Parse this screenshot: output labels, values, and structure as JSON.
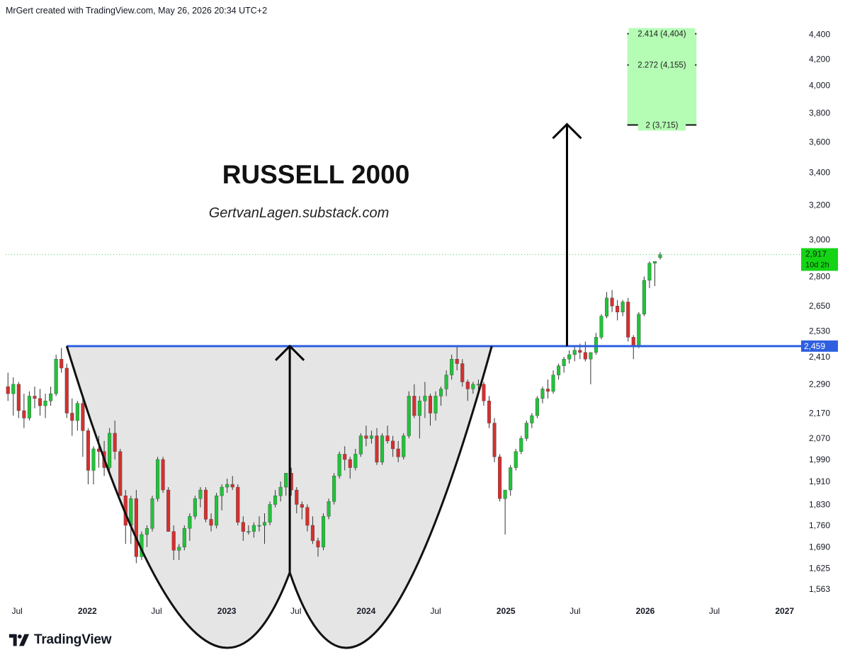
{
  "header": {
    "attribution": "MrGert created with TradingView.com, May 26, 2026 20:34 UTC+2"
  },
  "footer": {
    "brand": "TradingView"
  },
  "colors": {
    "up": "#22c23a",
    "down": "#d62f2f",
    "wick": "#333333",
    "blue_line": "#2f5fe0",
    "target_box": "#b5fcb5",
    "price_tag": "#15d415",
    "cup_fill": "#e5e5e5",
    "cup_line": "#111111"
  },
  "chart_data": {
    "type": "candlestick",
    "title": "RUSSELL 2000",
    "subtitle": "GertvanLagen.substack.com",
    "scale": "log",
    "ylim": [
      1530,
      4520
    ],
    "y_ticks": [
      1563,
      1625,
      1690,
      1760,
      1830,
      1910,
      1990,
      2070,
      2170,
      2290,
      2410,
      2530,
      2650,
      2800,
      3000,
      3200,
      3400,
      3600,
      3800,
      4000,
      4200,
      4400
    ],
    "y_tick_labels": [
      "1,563",
      "1,625",
      "1,690",
      "1,760",
      "1,830",
      "1,910",
      "1,990",
      "2,070",
      "2,170",
      "2,290",
      "2,410",
      "2,530",
      "2,650",
      "2,800",
      "3,000",
      "3,200",
      "3,400",
      "3,600",
      "3,800",
      "4,000",
      "4,200",
      "4,400"
    ],
    "xlim": [
      "2021-06-01",
      "2027-02-15"
    ],
    "x_ticks": [
      {
        "date": "2021-07-01",
        "label": "Jul",
        "bold": false
      },
      {
        "date": "2022-01-01",
        "label": "2022",
        "bold": true
      },
      {
        "date": "2022-07-01",
        "label": "Jul",
        "bold": false
      },
      {
        "date": "2023-01-01",
        "label": "2023",
        "bold": true
      },
      {
        "date": "2023-07-01",
        "label": "Jul",
        "bold": false
      },
      {
        "date": "2024-01-01",
        "label": "2024",
        "bold": true
      },
      {
        "date": "2024-07-01",
        "label": "Jul",
        "bold": false
      },
      {
        "date": "2025-01-01",
        "label": "2025",
        "bold": true
      },
      {
        "date": "2025-07-01",
        "label": "Jul",
        "bold": false
      },
      {
        "date": "2026-01-01",
        "label": "2026",
        "bold": true
      },
      {
        "date": "2026-07-01",
        "label": "Jul",
        "bold": false
      },
      {
        "date": "2027-01-01",
        "label": "2027",
        "bold": true
      }
    ],
    "candle_interval": "2 weeks",
    "candles_start": "2021-06-07",
    "candles": [
      [
        2280,
        2340,
        2220,
        2250
      ],
      [
        2250,
        2320,
        2160,
        2290
      ],
      [
        2290,
        2300,
        2150,
        2180
      ],
      [
        2180,
        2250,
        2110,
        2150
      ],
      [
        2150,
        2260,
        2140,
        2240
      ],
      [
        2240,
        2280,
        2190,
        2230
      ],
      [
        2230,
        2270,
        2160,
        2200
      ],
      [
        2200,
        2250,
        2150,
        2220
      ],
      [
        2220,
        2280,
        2200,
        2250
      ],
      [
        2250,
        2420,
        2240,
        2400
      ],
      [
        2400,
        2450,
        2340,
        2360
      ],
      [
        2360,
        2380,
        2150,
        2170
      ],
      [
        2170,
        2230,
        2080,
        2140
      ],
      [
        2140,
        2220,
        2100,
        2210
      ],
      [
        2210,
        2240,
        2000,
        2100
      ],
      [
        2100,
        2110,
        1900,
        1950
      ],
      [
        1950,
        2040,
        1900,
        2030
      ],
      [
        2030,
        2080,
        1960,
        2020
      ],
      [
        2020,
        2060,
        1930,
        1960
      ],
      [
        1960,
        2110,
        1950,
        2090
      ],
      [
        2090,
        2140,
        1990,
        2020
      ],
      [
        2020,
        2030,
        1860,
        1860
      ],
      [
        1860,
        1880,
        1700,
        1760
      ],
      [
        1760,
        1860,
        1700,
        1850
      ],
      [
        1850,
        1880,
        1640,
        1660
      ],
      [
        1660,
        1740,
        1650,
        1730
      ],
      [
        1730,
        1760,
        1690,
        1750
      ],
      [
        1750,
        1860,
        1740,
        1850
      ],
      [
        1850,
        2000,
        1840,
        1990
      ],
      [
        1990,
        2000,
        1870,
        1880
      ],
      [
        1880,
        1890,
        1740,
        1740
      ],
      [
        1740,
        1760,
        1650,
        1680
      ],
      [
        1680,
        1700,
        1650,
        1690
      ],
      [
        1690,
        1760,
        1680,
        1750
      ],
      [
        1750,
        1800,
        1710,
        1790
      ],
      [
        1790,
        1860,
        1780,
        1850
      ],
      [
        1850,
        1890,
        1820,
        1880
      ],
      [
        1880,
        1890,
        1770,
        1780
      ],
      [
        1780,
        1800,
        1740,
        1760
      ],
      [
        1760,
        1870,
        1750,
        1860
      ],
      [
        1860,
        1900,
        1810,
        1890
      ],
      [
        1890,
        1920,
        1870,
        1900
      ],
      [
        1900,
        1930,
        1880,
        1890
      ],
      [
        1890,
        1900,
        1760,
        1770
      ],
      [
        1770,
        1790,
        1710,
        1740
      ],
      [
        1740,
        1760,
        1730,
        1740
      ],
      [
        1740,
        1770,
        1720,
        1760
      ],
      [
        1760,
        1790,
        1740,
        1760
      ],
      [
        1760,
        1800,
        1700,
        1770
      ],
      [
        1770,
        1840,
        1760,
        1830
      ],
      [
        1830,
        1880,
        1820,
        1860
      ],
      [
        1860,
        1910,
        1840,
        1890
      ],
      [
        1890,
        1940,
        1860,
        1940
      ],
      [
        1940,
        1960,
        1860,
        1880
      ],
      [
        1880,
        1890,
        1800,
        1830
      ],
      [
        1830,
        1840,
        1780,
        1820
      ],
      [
        1820,
        1830,
        1740,
        1760
      ],
      [
        1760,
        1790,
        1700,
        1710
      ],
      [
        1710,
        1720,
        1660,
        1690
      ],
      [
        1690,
        1800,
        1680,
        1790
      ],
      [
        1790,
        1850,
        1780,
        1840
      ],
      [
        1840,
        1940,
        1830,
        1930
      ],
      [
        1930,
        2020,
        1920,
        2010
      ],
      [
        2010,
        2040,
        1950,
        1990
      ],
      [
        1990,
        2000,
        1920,
        1960
      ],
      [
        1960,
        2030,
        1950,
        2010
      ],
      [
        2010,
        2090,
        2000,
        2080
      ],
      [
        2080,
        2120,
        2040,
        2070
      ],
      [
        2070,
        2100,
        2050,
        2080
      ],
      [
        2080,
        2110,
        1970,
        1980
      ],
      [
        1980,
        2090,
        1970,
        2080
      ],
      [
        2080,
        2120,
        2050,
        2060
      ],
      [
        2060,
        2080,
        2000,
        2030
      ],
      [
        2030,
        2060,
        1980,
        2000
      ],
      [
        2000,
        2090,
        1990,
        2080
      ],
      [
        2080,
        2260,
        2070,
        2240
      ],
      [
        2240,
        2290,
        2150,
        2160
      ],
      [
        2160,
        2240,
        2070,
        2220
      ],
      [
        2220,
        2300,
        2150,
        2240
      ],
      [
        2240,
        2250,
        2120,
        2170
      ],
      [
        2170,
        2260,
        2140,
        2240
      ],
      [
        2240,
        2280,
        2200,
        2270
      ],
      [
        2270,
        2350,
        2240,
        2330
      ],
      [
        2330,
        2420,
        2310,
        2400
      ],
      [
        2400,
        2460,
        2350,
        2380
      ],
      [
        2380,
        2400,
        2280,
        2300
      ],
      [
        2300,
        2310,
        2220,
        2270
      ],
      [
        2270,
        2300,
        2250,
        2290
      ],
      [
        2290,
        2310,
        2260,
        2290
      ],
      [
        2290,
        2300,
        2200,
        2220
      ],
      [
        2220,
        2240,
        2110,
        2130
      ],
      [
        2130,
        2150,
        1980,
        2000
      ],
      [
        2000,
        2010,
        1840,
        1850
      ],
      [
        1850,
        1880,
        1730,
        1880
      ],
      [
        1880,
        1970,
        1860,
        1960
      ],
      [
        1960,
        2030,
        1950,
        2020
      ],
      [
        2020,
        2080,
        2010,
        2070
      ],
      [
        2070,
        2140,
        2060,
        2130
      ],
      [
        2130,
        2170,
        2110,
        2160
      ],
      [
        2160,
        2240,
        2150,
        2230
      ],
      [
        2230,
        2280,
        2210,
        2270
      ],
      [
        2270,
        2310,
        2230,
        2260
      ],
      [
        2260,
        2350,
        2250,
        2330
      ],
      [
        2330,
        2380,
        2310,
        2370
      ],
      [
        2370,
        2410,
        2340,
        2400
      ],
      [
        2400,
        2440,
        2380,
        2420
      ],
      [
        2420,
        2460,
        2390,
        2440
      ],
      [
        2440,
        2470,
        2400,
        2430
      ],
      [
        2430,
        2480,
        2390,
        2400
      ],
      [
        2400,
        2420,
        2290,
        2430
      ],
      [
        2430,
        2520,
        2420,
        2500
      ],
      [
        2500,
        2610,
        2490,
        2600
      ],
      [
        2600,
        2720,
        2590,
        2690
      ],
      [
        2690,
        2730,
        2620,
        2650
      ],
      [
        2650,
        2680,
        2580,
        2620
      ],
      [
        2620,
        2680,
        2600,
        2670
      ],
      [
        2670,
        2690,
        2480,
        2500
      ],
      [
        2500,
        2510,
        2400,
        2460
      ],
      [
        2460,
        2620,
        2450,
        2610
      ],
      [
        2610,
        2800,
        2600,
        2780
      ],
      [
        2780,
        2880,
        2740,
        2870
      ],
      [
        2870,
        2880,
        2750,
        2880
      ],
      [
        2900,
        2930,
        2890,
        2917
      ]
    ],
    "resistance": {
      "value": 2459,
      "label": "2,459"
    },
    "last_price": {
      "value": 2917,
      "label": "2,917",
      "countdown": "10d 2h"
    },
    "target_zone": {
      "levels": [
        {
          "ratio": "2.414",
          "value": 4404,
          "label": "2.414 (4,404)"
        },
        {
          "ratio": "2.272",
          "value": 4155,
          "label": "2.272 (4,155)"
        },
        {
          "ratio": "2",
          "value": 3715,
          "label": "2 (3,715)"
        }
      ],
      "start": "2025-11-15",
      "end": "2026-05-15"
    },
    "cup": {
      "start": "2021-11-08",
      "bottom": "2023-06-15",
      "end": "2024-11-25",
      "rim": 2459,
      "low": 1612
    },
    "measured_moves": [
      {
        "date": "2023-06-15",
        "from": 1612,
        "to": 2459
      },
      {
        "date": "2025-06-10",
        "from": 2459,
        "to": 3720
      }
    ]
  }
}
